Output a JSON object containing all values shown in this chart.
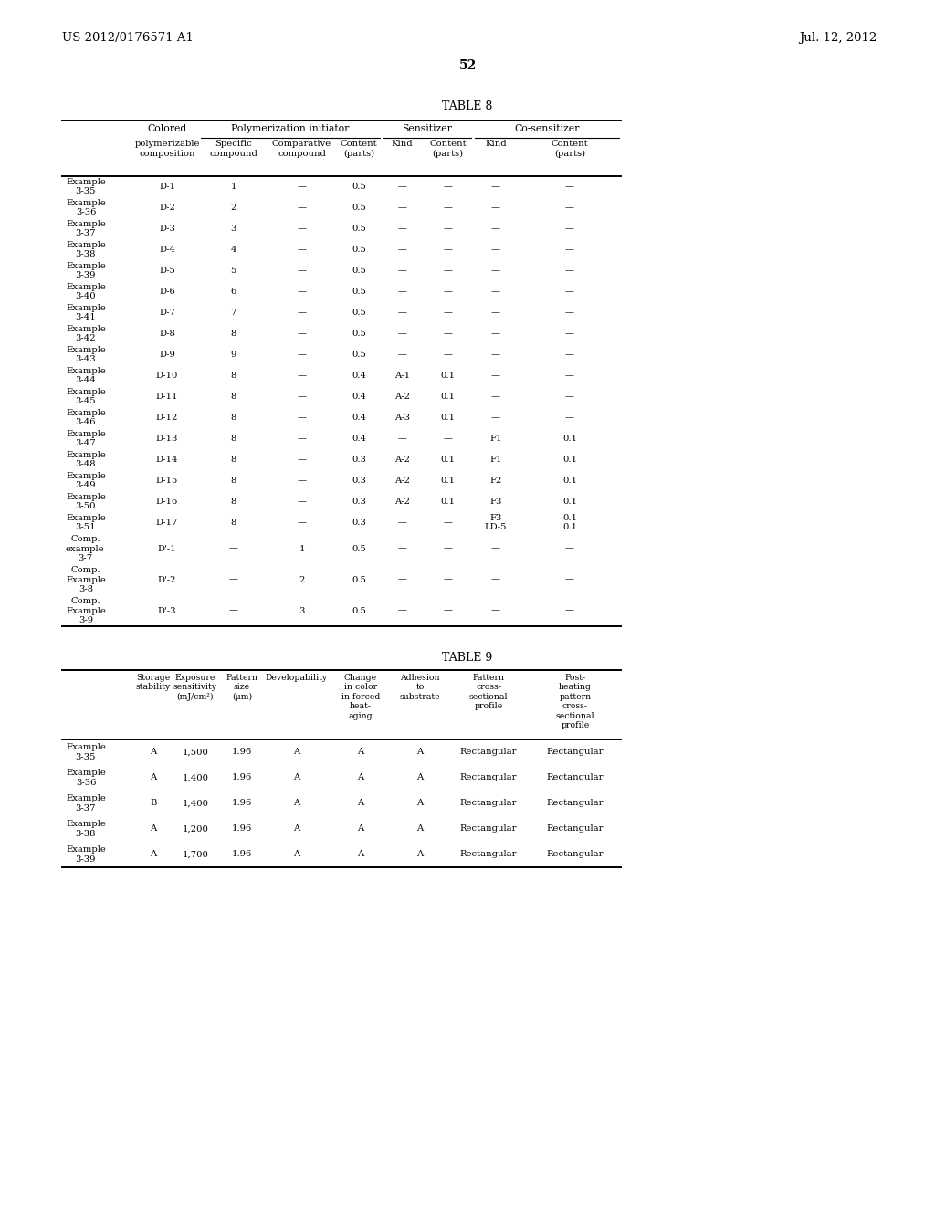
{
  "header_left": "US 2012/0176571 A1",
  "header_right": "Jul. 12, 2012",
  "page_number": "52",
  "table8_title": "TABLE 8",
  "table8_data": [
    [
      "Example\n3-35",
      "D-1",
      "1",
      "—",
      "0.5",
      "—",
      "—",
      "—",
      "—"
    ],
    [
      "Example\n3-36",
      "D-2",
      "2",
      "—",
      "0.5",
      "—",
      "—",
      "—",
      "—"
    ],
    [
      "Example\n3-37",
      "D-3",
      "3",
      "—",
      "0.5",
      "—",
      "—",
      "—",
      "—"
    ],
    [
      "Example\n3-38",
      "D-4",
      "4",
      "—",
      "0.5",
      "—",
      "—",
      "—",
      "—"
    ],
    [
      "Example\n3-39",
      "D-5",
      "5",
      "—",
      "0.5",
      "—",
      "—",
      "—",
      "—"
    ],
    [
      "Example\n3-40",
      "D-6",
      "6",
      "—",
      "0.5",
      "—",
      "—",
      "—",
      "—"
    ],
    [
      "Example\n3-41",
      "D-7",
      "7",
      "—",
      "0.5",
      "—",
      "—",
      "—",
      "—"
    ],
    [
      "Example\n3-42",
      "D-8",
      "8",
      "—",
      "0.5",
      "—",
      "—",
      "—",
      "—"
    ],
    [
      "Example\n3-43",
      "D-9",
      "9",
      "—",
      "0.5",
      "—",
      "—",
      "—",
      "—"
    ],
    [
      "Example\n3-44",
      "D-10",
      "8",
      "—",
      "0.4",
      "A-1",
      "0.1",
      "—",
      "—"
    ],
    [
      "Example\n3-45",
      "D-11",
      "8",
      "—",
      "0.4",
      "A-2",
      "0.1",
      "—",
      "—"
    ],
    [
      "Example\n3-46",
      "D-12",
      "8",
      "—",
      "0.4",
      "A-3",
      "0.1",
      "—",
      "—"
    ],
    [
      "Example\n3-47",
      "D-13",
      "8",
      "—",
      "0.4",
      "—",
      "—",
      "F1",
      "0.1"
    ],
    [
      "Example\n3-48",
      "D-14",
      "8",
      "—",
      "0.3",
      "A-2",
      "0.1",
      "F1",
      "0.1"
    ],
    [
      "Example\n3-49",
      "D-15",
      "8",
      "—",
      "0.3",
      "A-2",
      "0.1",
      "F2",
      "0.1"
    ],
    [
      "Example\n3-50",
      "D-16",
      "8",
      "—",
      "0.3",
      "A-2",
      "0.1",
      "F3",
      "0.1"
    ],
    [
      "Example\n3-51",
      "D-17",
      "8",
      "—",
      "0.3",
      "—",
      "—",
      "F3\nLD-5",
      "0.1\n0.1"
    ],
    [
      "Comp.\nexample\n3-7",
      "D'-1",
      "—",
      "1",
      "0.5",
      "—",
      "—",
      "—",
      "—"
    ],
    [
      "Comp.\nExample\n3-8",
      "D'-2",
      "—",
      "2",
      "0.5",
      "—",
      "—",
      "—",
      "—"
    ],
    [
      "Comp.\nExample\n3-9",
      "D'-3",
      "—",
      "3",
      "0.5",
      "—",
      "—",
      "—",
      "—"
    ]
  ],
  "table9_title": "TABLE 9",
  "table9_col_headers": [
    "",
    "Storage\nstability",
    "Exposure\nsensitivity\n(mJ/cm²)",
    "Pattern\nsize\n(μm)",
    "Developability",
    "Change\nin color\nin forced\nheat-\naging",
    "Adhesion\nto\nsubstrate",
    "Pattern\ncross-\nsectional\nprofile",
    "Post-\nheating\npattern\ncross-\nsectional\nprofile"
  ],
  "table9_data": [
    [
      "Example\n3-35",
      "A",
      "1,500",
      "1.96",
      "A",
      "A",
      "A",
      "Rectangular",
      "Rectangular"
    ],
    [
      "Example\n3-36",
      "A",
      "1,400",
      "1.96",
      "A",
      "A",
      "A",
      "Rectangular",
      "Rectangular"
    ],
    [
      "Example\n3-37",
      "B",
      "1,400",
      "1.96",
      "A",
      "A",
      "A",
      "Rectangular",
      "Rectangular"
    ],
    [
      "Example\n3-38",
      "A",
      "1,200",
      "1.96",
      "A",
      "A",
      "A",
      "Rectangular",
      "Rectangular"
    ],
    [
      "Example\n3-39",
      "A",
      "1,700",
      "1.96",
      "A",
      "A",
      "A",
      "Rectangular",
      "Rectangular"
    ]
  ],
  "background_color": "#ffffff",
  "text_color": "#000000"
}
